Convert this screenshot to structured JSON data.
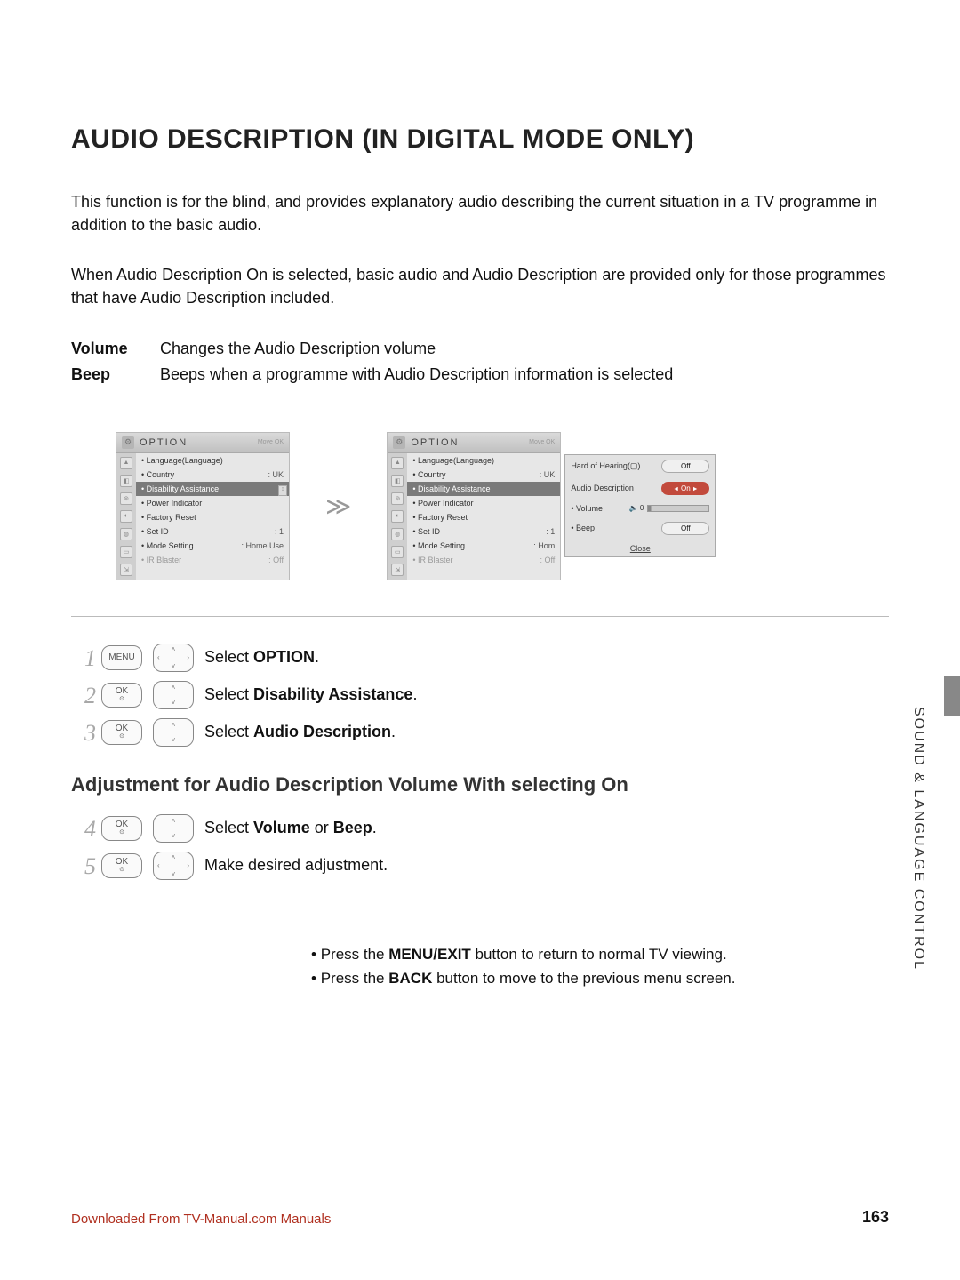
{
  "title": "AUDIO DESCRIPTION (IN DIGITAL MODE ONLY)",
  "intro1": "This function is for the blind, and provides explanatory audio describing the current situation in a TV programme in addition to the basic audio.",
  "intro2": "When Audio Description On is selected, basic audio and Audio Description are provided only for those programmes that have Audio Description included.",
  "defs": {
    "volume": {
      "label": "Volume",
      "desc": "Changes the Audio Description volume"
    },
    "beep": {
      "label": "Beep",
      "desc": "Beeps when a programme with Audio Description information is selected"
    }
  },
  "osd": {
    "title": "OPTION",
    "move_ok_hint": "Move   OK",
    "items": [
      {
        "label": "Language(Language)",
        "value": ""
      },
      {
        "label": "Country",
        "value": ": UK"
      },
      {
        "label": "Disability Assistance",
        "value": "",
        "selected": true
      },
      {
        "label": "Power Indicator",
        "value": ""
      },
      {
        "label": "Factory Reset",
        "value": ""
      },
      {
        "label": "Set ID",
        "value": ": 1"
      },
      {
        "label": "Mode Setting",
        "value": ": Home Use"
      },
      {
        "label": "IR Blaster",
        "value": ": Off",
        "disabled": true
      }
    ],
    "items_right_mode_value": ": Hom",
    "items_right_ir_value": ": Off"
  },
  "popup": {
    "hard_label": "Hard of Hearing(▢)",
    "hard_value": "Off",
    "ad_label": "Audio Description",
    "ad_value": "On",
    "vol_label": "Volume",
    "vol_icon": "🔈 0",
    "beep_label": "Beep",
    "beep_value": "Off",
    "close": "Close"
  },
  "steps": {
    "s1": "Select OPTION.",
    "s2": "Select Disability Assistance.",
    "s3": "Select Audio Description.",
    "h2": "Adjustment for Audio Description Volume With selecting On",
    "s4": "Select Volume or Beep.",
    "s5": "Make desired adjustment."
  },
  "notes": {
    "n1_a": "Press the ",
    "n1_b": "MENU/EXIT",
    "n1_c": " button to return to normal TV viewing.",
    "n2_a": "Press the ",
    "n2_b": "BACK",
    "n2_c": " button to move to the previous menu screen."
  },
  "side_label": "SOUND & LANGUAGE CONTROL",
  "page_number": "163",
  "download_note": "Downloaded From TV-Manual.com Manuals",
  "colors": {
    "accent_red": "#c24a3c",
    "grey_panel": "#d8d8d8",
    "text": "#111111"
  }
}
